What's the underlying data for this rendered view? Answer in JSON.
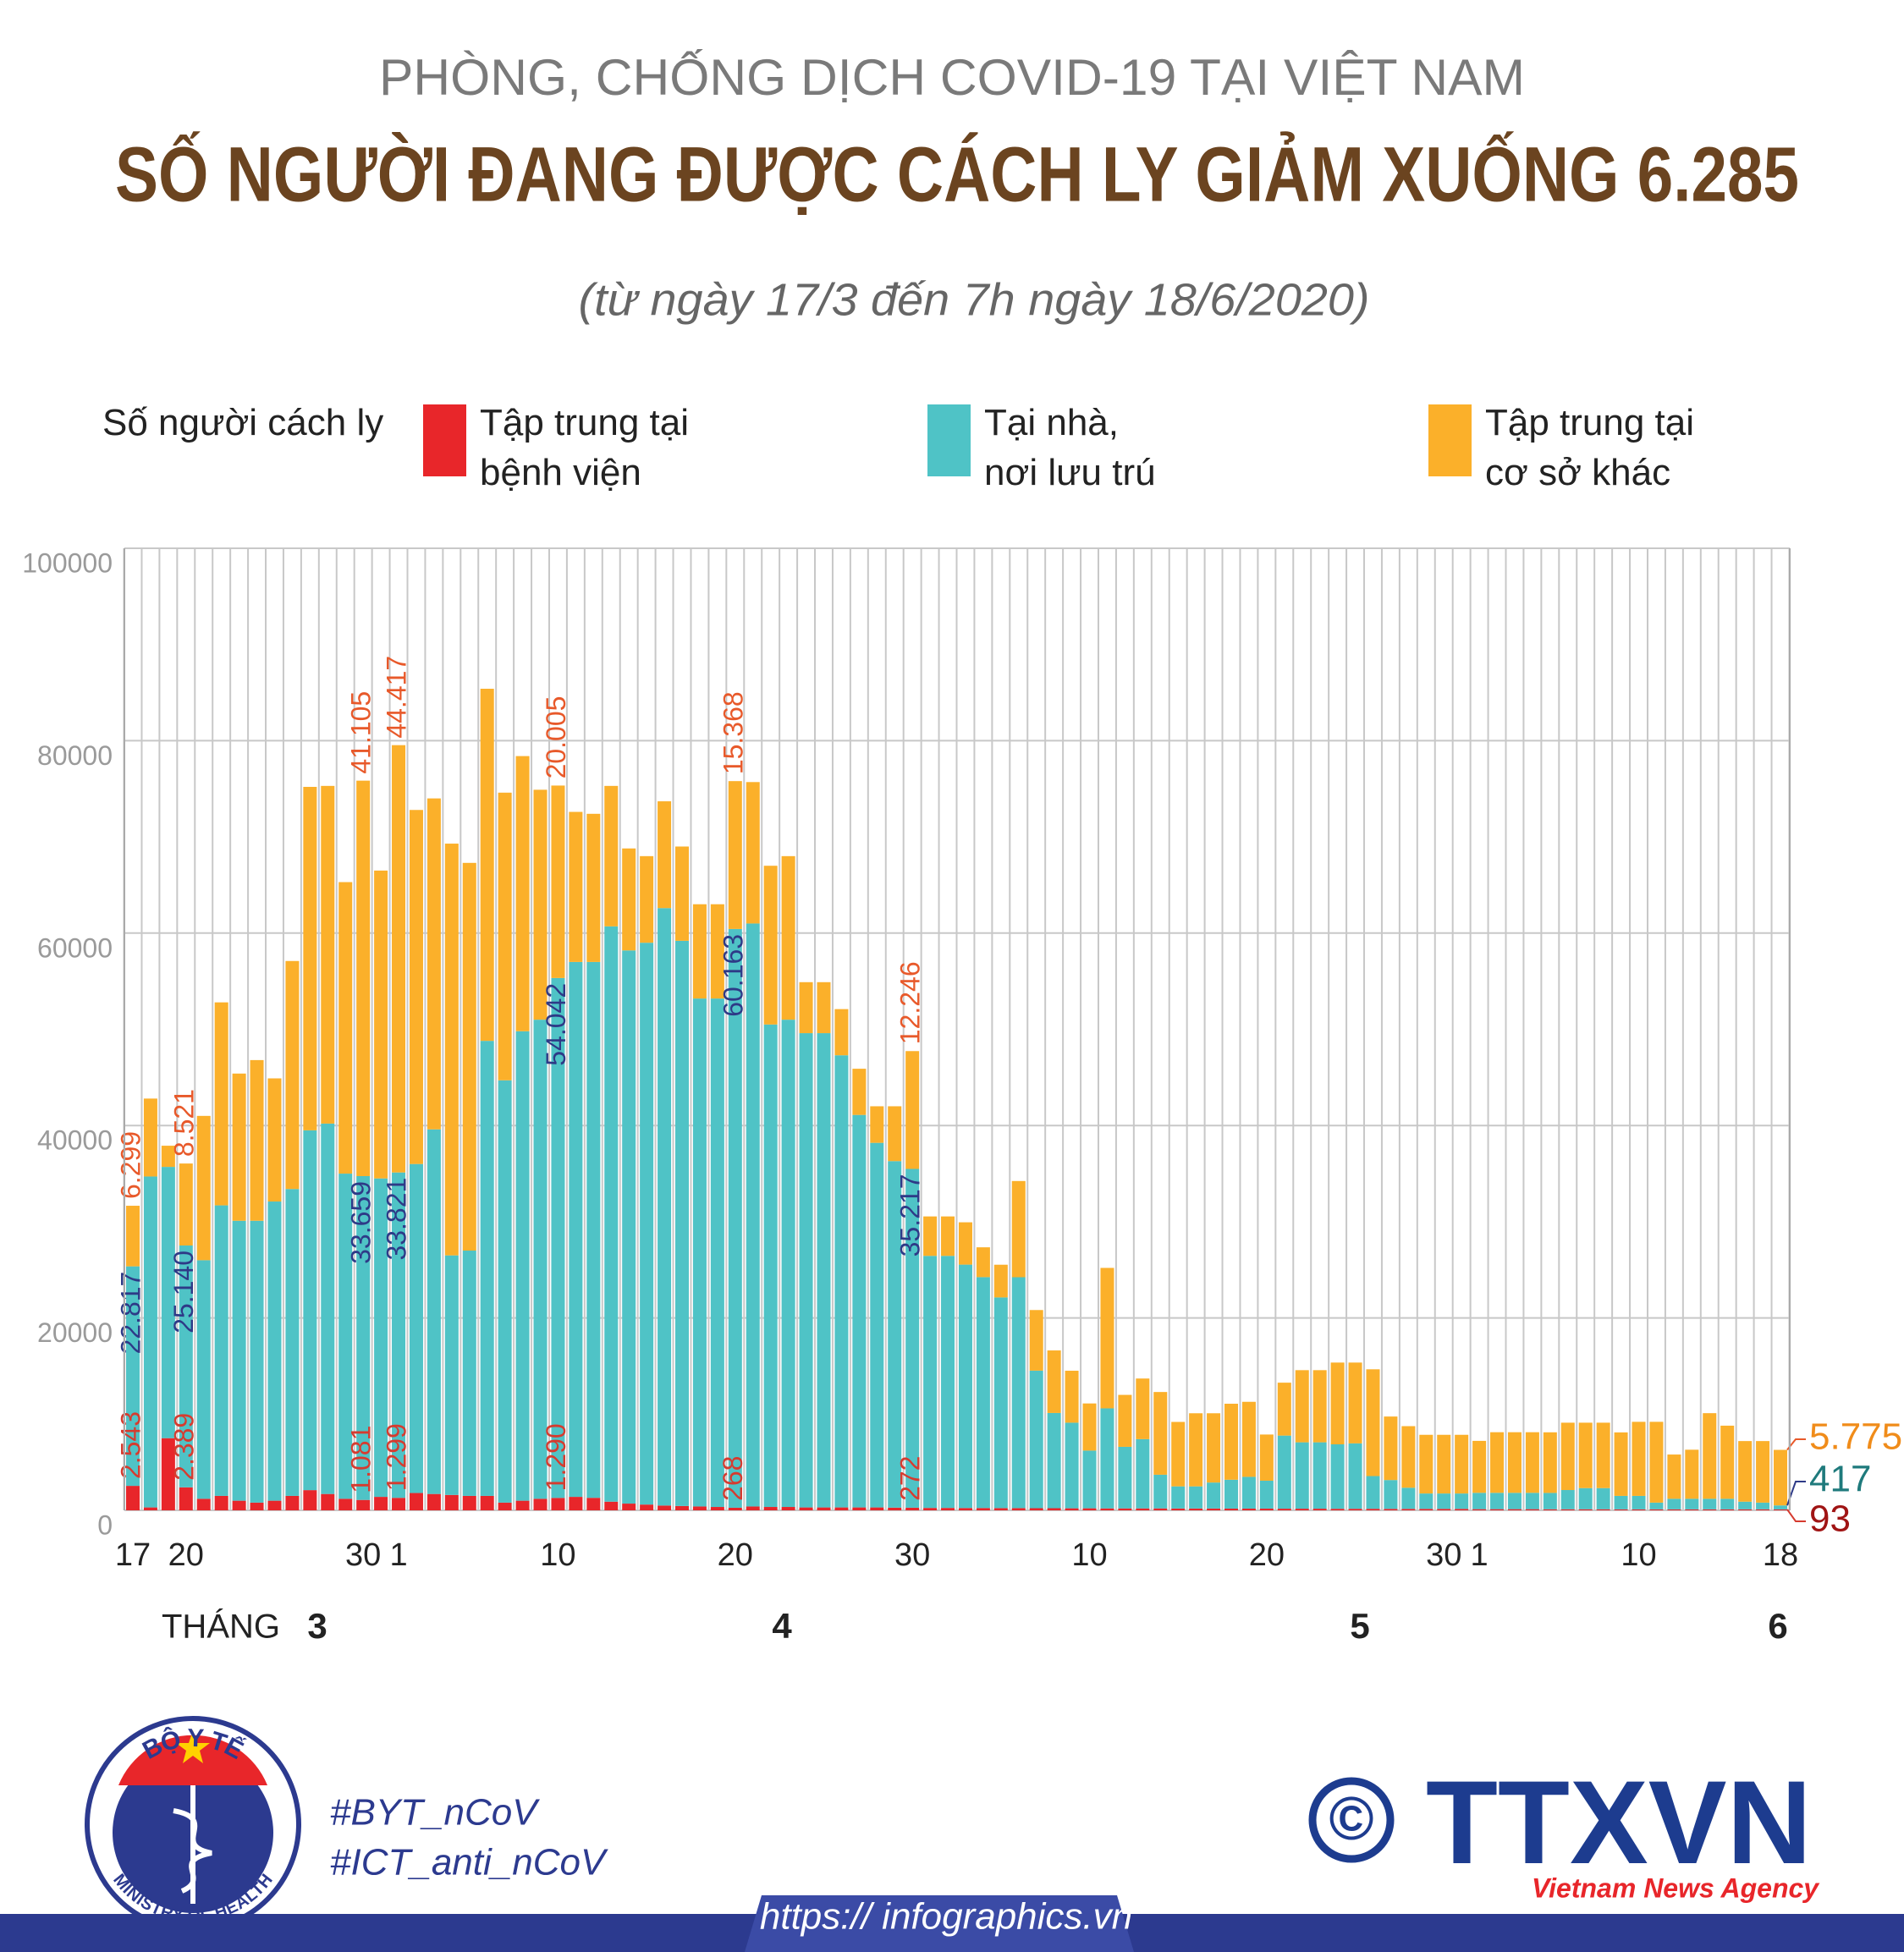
{
  "header": {
    "supertitle": "PHÒNG, CHỐNG DỊCH COVID-19 TẠI VIỆT NAM",
    "title": "SỐ NGƯỜI ĐANG ĐƯỢC CÁCH LY GIẢM XUỐNG 6.285",
    "subtitle": "(từ ngày 17/3 đến 7h ngày 18/6/2020)"
  },
  "chart_data": {
    "type": "bar",
    "stacked": true,
    "legend_title": "Số người cách ly",
    "categories": [
      "17",
      null,
      null,
      "20",
      null,
      null,
      null,
      null,
      null,
      null,
      null,
      null,
      null,
      "30",
      null,
      "1",
      null,
      null,
      null,
      null,
      null,
      null,
      null,
      null,
      "10",
      null,
      null,
      null,
      null,
      null,
      null,
      null,
      null,
      null,
      "20",
      null,
      null,
      null,
      null,
      null,
      null,
      null,
      null,
      null,
      "30",
      null,
      null,
      null,
      null,
      null,
      null,
      null,
      null,
      null,
      "10",
      null,
      null,
      null,
      null,
      null,
      null,
      null,
      null,
      null,
      "20",
      null,
      null,
      null,
      null,
      null,
      null,
      null,
      null,
      null,
      "30",
      null,
      "1",
      null,
      null,
      null,
      null,
      null,
      null,
      null,
      null,
      "10",
      null,
      null,
      null,
      null,
      null,
      null,
      null,
      "18"
    ],
    "month_prefix": "THÁNG",
    "months": [
      "3",
      "4",
      "5",
      "6"
    ],
    "ylim": [
      0,
      100000
    ],
    "yticks": [
      0,
      20000,
      40000,
      60000,
      80000,
      100000
    ],
    "grid": true,
    "series": [
      {
        "name": "Tập trung tại\nbệnh viện",
        "color": "#e8262a",
        "label_color": "#d63b2f",
        "values": [
          2543,
          300,
          7500,
          2389,
          1200,
          1500,
          1000,
          800,
          1000,
          1500,
          2100,
          1700,
          1200,
          1081,
          1400,
          1299,
          1800,
          1700,
          1600,
          1500,
          1500,
          800,
          1000,
          1200,
          1290,
          1400,
          1300,
          900,
          700,
          600,
          500,
          450,
          400,
          350,
          268,
          400,
          350,
          350,
          300,
          300,
          300,
          300,
          300,
          280,
          272,
          250,
          250,
          240,
          240,
          230,
          230,
          220,
          220,
          210,
          210,
          200,
          200,
          200,
          200,
          190,
          190,
          190,
          180,
          180,
          180,
          170,
          170,
          170,
          160,
          160,
          160,
          150,
          150,
          150,
          150,
          150,
          120,
          120,
          120,
          120,
          110,
          110,
          110,
          110,
          100,
          100,
          100,
          100,
          100,
          100,
          100,
          100,
          100,
          93
        ],
        "value_labels": [
          "2.543",
          null,
          null,
          "2.389",
          null,
          null,
          null,
          null,
          null,
          null,
          null,
          null,
          null,
          "1.081",
          null,
          "1.299",
          null,
          null,
          null,
          null,
          null,
          null,
          null,
          null,
          "1.290",
          null,
          null,
          null,
          null,
          null,
          null,
          null,
          null,
          null,
          "268",
          null,
          null,
          null,
          null,
          null,
          null,
          null,
          null,
          null,
          "272",
          null,
          null,
          null,
          null,
          null,
          null,
          null,
          null,
          null,
          null,
          null,
          null,
          null,
          null,
          null,
          null,
          null,
          null,
          null,
          null,
          null,
          null,
          null,
          null,
          null,
          null,
          null,
          null,
          null,
          null,
          null,
          null,
          null,
          null,
          null,
          null,
          null,
          null,
          null,
          null,
          null,
          null,
          null,
          null,
          null,
          null,
          null,
          null,
          "93"
        ]
      },
      {
        "name": "Tại nhà,\nnơi lưu trú",
        "color": "#4fc3c6",
        "label_color": "#2e3a87",
        "values": [
          22817,
          34400,
          28200,
          25140,
          24800,
          30200,
          29100,
          29300,
          31100,
          31900,
          37400,
          38500,
          33800,
          33659,
          33100,
          33821,
          34200,
          37900,
          24900,
          25500,
          47300,
          43900,
          48800,
          49800,
          54042,
          55600,
          55700,
          59800,
          57500,
          58400,
          62100,
          58750,
          52800,
          52850,
          60163,
          60600,
          50150,
          50650,
          49300,
          49300,
          47000,
          40800,
          37900,
          36020,
          35217,
          26200,
          26200,
          25300,
          24000,
          21900,
          24000,
          14300,
          9900,
          8900,
          6000,
          10400,
          6400,
          7200,
          3500,
          2300,
          2300,
          2700,
          3000,
          3300,
          2900,
          7600,
          6900,
          6900,
          6700,
          6800,
          3400,
          3000,
          2200,
          1600,
          1600,
          1600,
          1700,
          1700,
          1700,
          1700,
          1700,
          2000,
          2200,
          2200,
          1400,
          1400,
          700,
          1100,
          1100,
          1100,
          1100,
          800,
          700,
          417
        ],
        "value_labels": [
          "22.817",
          null,
          null,
          "25.140",
          null,
          null,
          null,
          null,
          null,
          null,
          null,
          null,
          null,
          "33.659",
          null,
          "33.821",
          null,
          null,
          null,
          null,
          null,
          null,
          null,
          null,
          "54.042",
          null,
          null,
          null,
          null,
          null,
          null,
          null,
          null,
          null,
          "60.163",
          null,
          null,
          null,
          null,
          null,
          null,
          null,
          null,
          null,
          "35.217",
          null,
          null,
          null,
          null,
          null,
          null,
          null,
          null,
          null,
          null,
          null,
          null,
          null,
          null,
          null,
          null,
          null,
          null,
          null,
          null,
          null,
          null,
          null,
          null,
          null,
          null,
          null,
          null,
          null,
          null,
          null,
          null,
          null,
          null,
          null,
          null,
          null,
          null,
          null,
          null,
          null,
          null,
          null,
          null,
          null,
          null,
          null,
          null,
          "417"
        ]
      },
      {
        "name": "Tập trung tại\ncơ sở khác",
        "color": "#fbb02a",
        "label_color": "#e8592a",
        "values": [
          6299,
          8100,
          2200,
          8521,
          15000,
          21100,
          15300,
          16700,
          12800,
          23700,
          35700,
          35100,
          30300,
          41105,
          32000,
          44417,
          36800,
          34400,
          42800,
          40300,
          36600,
          29900,
          28600,
          23900,
          20005,
          15600,
          15400,
          14600,
          10600,
          9000,
          11100,
          9800,
          9800,
          9800,
          15368,
          14700,
          16500,
          17000,
          5300,
          5300,
          4800,
          4800,
          3800,
          5700,
          12246,
          4100,
          4100,
          4400,
          3100,
          3400,
          10000,
          6300,
          6500,
          5400,
          4900,
          14600,
          5400,
          6300,
          8600,
          6700,
          7600,
          7200,
          7900,
          7800,
          4800,
          5500,
          7500,
          7500,
          8500,
          8400,
          11100,
          6600,
          6400,
          6100,
          6100,
          6100,
          5400,
          6300,
          6300,
          6300,
          6300,
          7000,
          6800,
          6800,
          6600,
          7700,
          8400,
          4600,
          5100,
          8900,
          7600,
          6300,
          6400,
          5775
        ],
        "value_labels": [
          "6.299",
          null,
          null,
          "8.521",
          null,
          null,
          null,
          null,
          null,
          null,
          null,
          null,
          null,
          "41.105",
          null,
          "44.417",
          null,
          null,
          null,
          null,
          null,
          null,
          null,
          null,
          "20.005",
          null,
          null,
          null,
          null,
          null,
          null,
          null,
          null,
          null,
          "15.368",
          null,
          null,
          null,
          null,
          null,
          null,
          null,
          null,
          null,
          "12.246",
          null,
          null,
          null,
          null,
          null,
          null,
          null,
          null,
          null,
          null,
          null,
          null,
          null,
          null,
          null,
          null,
          null,
          null,
          null,
          null,
          null,
          null,
          null,
          null,
          null,
          null,
          null,
          null,
          null,
          null,
          null,
          null,
          null,
          null,
          null,
          null,
          null,
          null,
          null,
          null,
          null,
          null,
          null,
          null,
          null,
          null,
          null,
          null,
          "5.775"
        ]
      }
    ]
  },
  "footer": {
    "hashtags": [
      "#BYT_nCoV",
      "#ICT_anti_nCoV"
    ],
    "url": "https:// infographics.vn",
    "logo_left": {
      "top": "BỘ Y TẾ",
      "bottom": "MINISTRY OF HEALTH"
    },
    "logo_right": {
      "mark": "©",
      "name": "TTXVN",
      "tagline": "Vietnam News Agency"
    }
  }
}
